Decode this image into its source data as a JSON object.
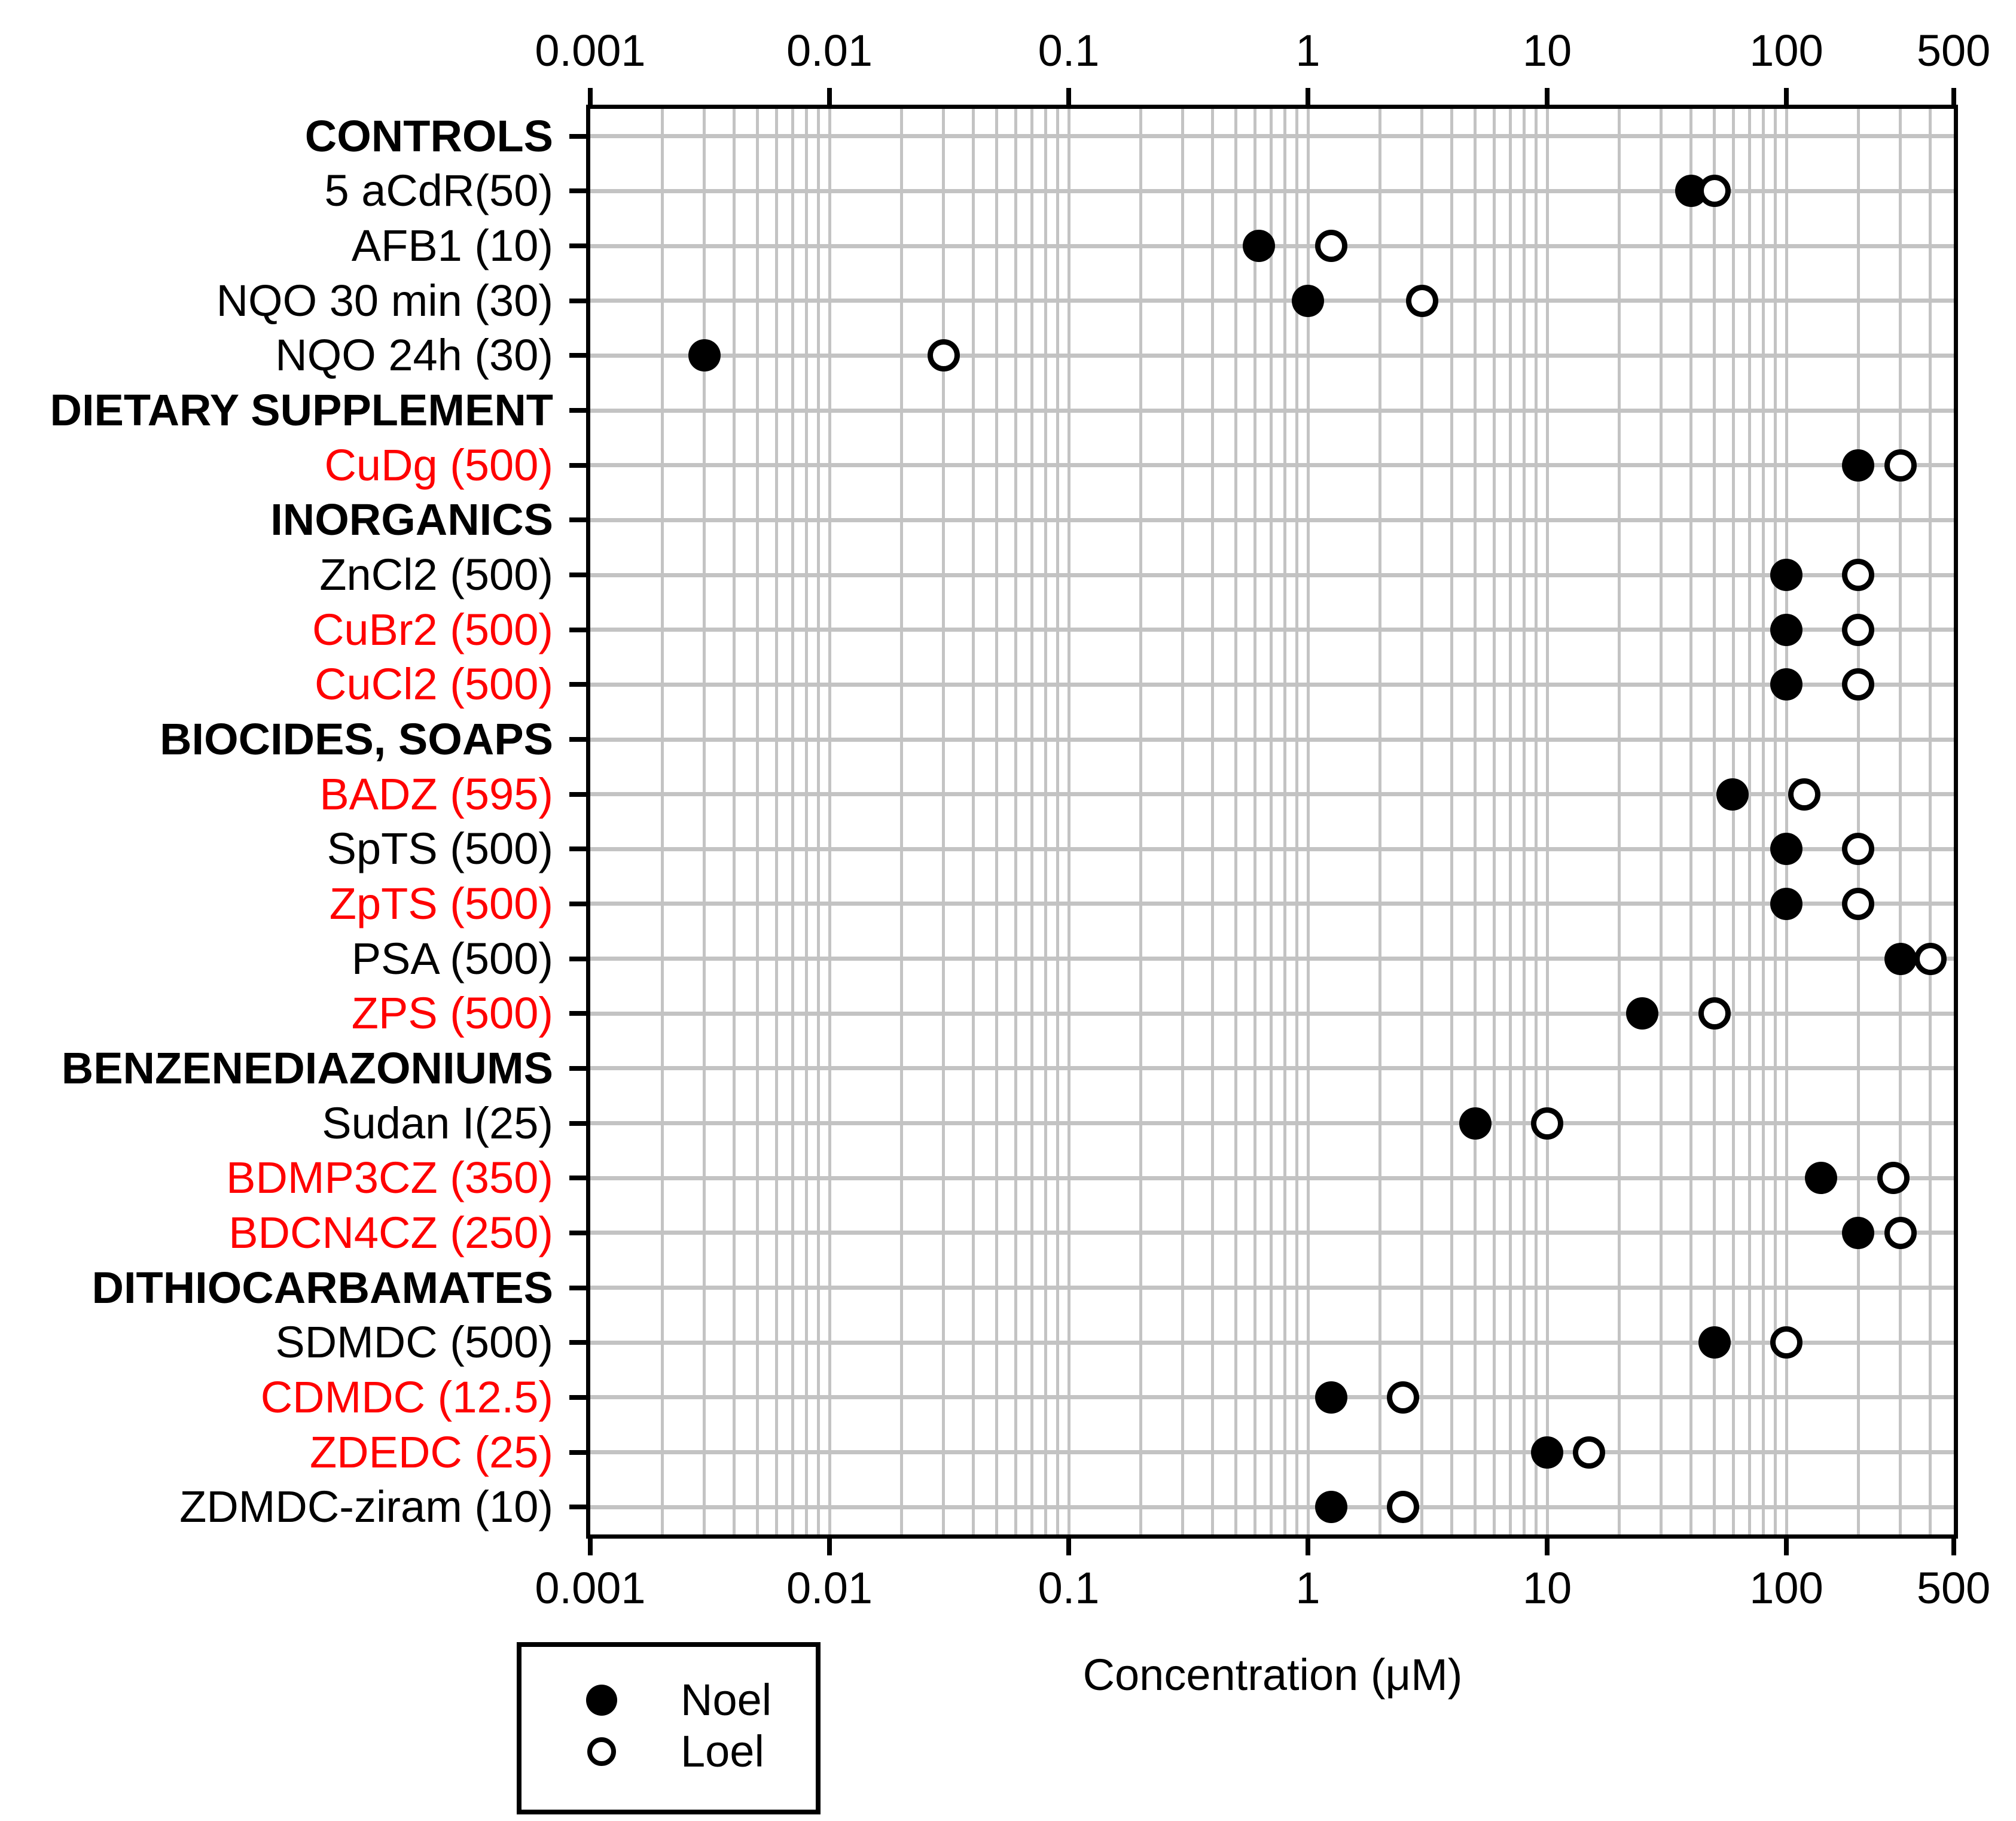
{
  "page": {
    "background": "#ffffff"
  },
  "colors": {
    "black": "#000000",
    "red": "#ff0000",
    "grid_gray": "#c3c3c3",
    "marker_fill": "#000000",
    "marker_open_fill": "#ffffff"
  },
  "axis": {
    "xlabel": "Concentration (μM)",
    "tick_labels": [
      "0.001",
      "0.01",
      "0.1",
      "1",
      "10",
      "100",
      "500"
    ],
    "tick_values": [
      0.001,
      0.01,
      0.1,
      1,
      10,
      100,
      500
    ],
    "scale": "log"
  },
  "legend": {
    "items": [
      {
        "label": "Noel",
        "marker": "filled-circle"
      },
      {
        "label": "Loel",
        "marker": "open-circle"
      }
    ]
  },
  "rows": [
    {
      "label": "CONTROLS",
      "header": true,
      "color": "black"
    },
    {
      "label": "5 aCdR(50)",
      "header": false,
      "color": "black",
      "noel": 40,
      "loel": 50
    },
    {
      "label": "AFB1 (10)",
      "header": false,
      "color": "black",
      "noel": 0.625,
      "loel": 1.25
    },
    {
      "label": "NQO 30 min (30)",
      "header": false,
      "color": "black",
      "noel": 1,
      "loel": 3
    },
    {
      "label": "NQO 24h (30)",
      "header": false,
      "color": "black",
      "noel": 0.003,
      "loel": 0.03
    },
    {
      "label": "DIETARY SUPPLEMENT",
      "header": true,
      "color": "black"
    },
    {
      "label": "CuDg (500)",
      "header": false,
      "color": "red",
      "noel": 200,
      "loel": 300
    },
    {
      "label": "INORGANICS",
      "header": true,
      "color": "black"
    },
    {
      "label": "ZnCl2 (500)",
      "header": false,
      "color": "black",
      "noel": 100,
      "loel": 200
    },
    {
      "label": "CuBr2 (500)",
      "header": false,
      "color": "red",
      "noel": 100,
      "loel": 200
    },
    {
      "label": "CuCl2 (500)",
      "header": false,
      "color": "red",
      "noel": 100,
      "loel": 200
    },
    {
      "label": "BIOCIDES, SOAPS",
      "header": true,
      "color": "black"
    },
    {
      "label": "BADZ (595)",
      "header": false,
      "color": "red",
      "noel": 59.5,
      "loel": 119
    },
    {
      "label": "SpTS (500)",
      "header": false,
      "color": "black",
      "noel": 100,
      "loel": 200
    },
    {
      "label": "ZpTS (500)",
      "header": false,
      "color": "red",
      "noel": 100,
      "loel": 200
    },
    {
      "label": "PSA (500)",
      "header": false,
      "color": "black",
      "noel": 300,
      "loel": 400
    },
    {
      "label": "ZPS (500)",
      "header": false,
      "color": "red",
      "noel": 25,
      "loel": 50
    },
    {
      "label": "BENZENEDIAZONIUMS",
      "header": true,
      "color": "black"
    },
    {
      "label": "Sudan I(25)",
      "header": false,
      "color": "black",
      "noel": 5,
      "loel": 10
    },
    {
      "label": "BDMP3CZ (350)",
      "header": false,
      "color": "red",
      "noel": 140,
      "loel": 280
    },
    {
      "label": "BDCN4CZ (250)",
      "header": false,
      "color": "red",
      "noel": 200,
      "loel": 300
    },
    {
      "label": "DITHIOCARBAMATES",
      "header": true,
      "color": "black"
    },
    {
      "label": "SDMDC (500)",
      "header": false,
      "color": "black",
      "noel": 50,
      "loel": 100
    },
    {
      "label": "CDMDC (12.5)",
      "header": false,
      "color": "red",
      "noel": 1.25,
      "loel": 2.5
    },
    {
      "label": "ZDEDC (25)",
      "header": false,
      "color": "red",
      "noel": 10,
      "loel": 15
    },
    {
      "label": "ZDMDC-ziram (10)",
      "header": false,
      "color": "black",
      "noel": 1.25,
      "loel": 2.5
    }
  ],
  "chart_data": {
    "type": "scatter",
    "title": "",
    "xlabel": "Concentration (μM)",
    "ylabel": "",
    "x_scale": "log",
    "x_range": [
      0.001,
      500
    ],
    "x_ticks": [
      0.001,
      0.01,
      0.1,
      1,
      10,
      100,
      500
    ],
    "grid": true,
    "legend_position": "bottom-left",
    "categories": [
      "CONTROLS",
      "5 aCdR(50)",
      "AFB1 (10)",
      "NQO 30 min (30)",
      "NQO 24h (30)",
      "DIETARY SUPPLEMENT",
      "CuDg (500)",
      "INORGANICS",
      "ZnCl2 (500)",
      "CuBr2 (500)",
      "CuCl2 (500)",
      "BIOCIDES, SOAPS",
      "BADZ (595)",
      "SpTS (500)",
      "ZpTS (500)",
      "PSA (500)",
      "ZPS (500)",
      "BENZENEDIAZONIUMS",
      "Sudan I(25)",
      "BDMP3CZ (350)",
      "BDCN4CZ (250)",
      "DITHIOCARBAMATES",
      "SDMDC (500)",
      "CDMDC (12.5)",
      "ZDEDC (25)",
      "ZDMDC-ziram (10)"
    ],
    "series": [
      {
        "name": "Noel",
        "marker": "filled-circle",
        "values": [
          null,
          40,
          0.625,
          1,
          0.003,
          null,
          200,
          null,
          100,
          100,
          100,
          null,
          59.5,
          100,
          100,
          300,
          25,
          null,
          5,
          140,
          200,
          null,
          50,
          1.25,
          10,
          1.25
        ]
      },
      {
        "name": "Loel",
        "marker": "open-circle",
        "values": [
          null,
          50,
          1.25,
          3,
          0.03,
          null,
          300,
          null,
          200,
          200,
          200,
          null,
          119,
          200,
          200,
          400,
          50,
          null,
          10,
          280,
          300,
          null,
          100,
          2.5,
          15,
          2.5
        ]
      }
    ]
  }
}
